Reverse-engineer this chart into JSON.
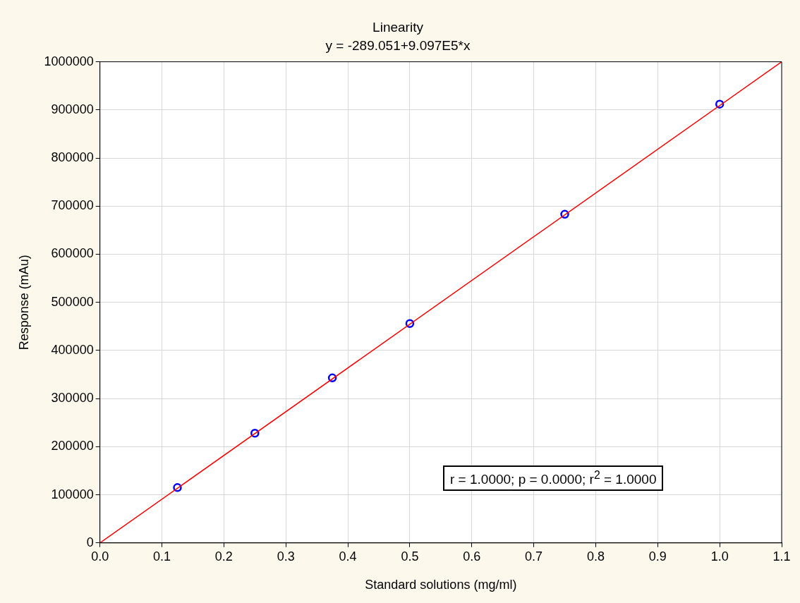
{
  "chart_data": {
    "type": "scatter",
    "title": "Linearity",
    "subtitle": "y = -289.051+9.097E5*x",
    "xlabel": "Standard solutions (mg/ml)",
    "ylabel": "Response (mAu)",
    "series": [
      {
        "type": "scatter",
        "color": "#0000ff",
        "marker": "circle",
        "x": [
          0.125,
          0.25,
          0.375,
          0.5,
          0.75,
          1.0
        ],
        "values": [
          115000,
          228000,
          343000,
          456000,
          683000,
          912000
        ]
      },
      {
        "type": "line",
        "color": "#ff0000",
        "marker": "none",
        "line_style": "solid",
        "x": [
          0,
          1.1
        ],
        "values": [
          0,
          1000000
        ]
      }
    ],
    "xlim": [
      0,
      1.1
    ],
    "xticks": [
      {
        "value": 0,
        "label": "0.0"
      },
      {
        "value": 0.1,
        "label": "0.1"
      },
      {
        "value": 0.2,
        "label": "0.2"
      },
      {
        "value": 0.3,
        "label": "0.3"
      },
      {
        "value": 0.4,
        "label": "0.4"
      },
      {
        "value": 0.5,
        "label": "0.5"
      },
      {
        "value": 0.6,
        "label": "0.6"
      },
      {
        "value": 0.7,
        "label": "0.7"
      },
      {
        "value": 0.8,
        "label": "0.8"
      },
      {
        "value": 0.9,
        "label": "0.9"
      },
      {
        "value": 1,
        "label": "1.0"
      },
      {
        "value": 1.1,
        "label": "1.1"
      }
    ],
    "ylim": [
      0,
      1000000
    ],
    "yticks": [
      0,
      100000,
      200000,
      300000,
      400000,
      500000,
      600000,
      700000,
      800000,
      900000,
      1000000
    ],
    "grid": true,
    "legend": false,
    "annotations": [
      "r = 1.0000; p = 0.0000; r$^{2}$ = 1.0000"
    ]
  }
}
